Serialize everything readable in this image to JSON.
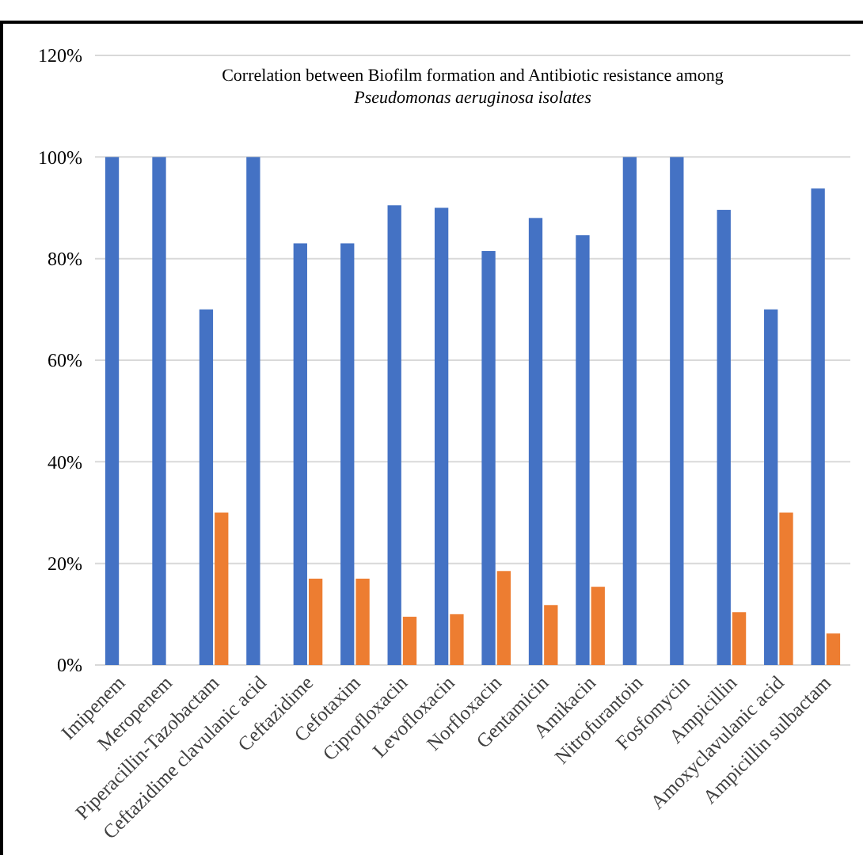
{
  "chart_data": {
    "type": "bar",
    "title": "Correlation between Biofilm formation and Antibiotic resistance among",
    "subtitle": "Pseudomonas aeruginosa isolates",
    "categories": [
      "Imipenem",
      "Meropenem",
      "Piperacillin-Tazobactam",
      "Ceftazidime clavulanic acid",
      "Ceftazidime",
      "Cefotaxim",
      "Ciprofloxacin",
      "Levofloxacin",
      "Norfloxacin",
      "Gentamicin",
      "Amikacin",
      "Nitrofurantoin",
      "Fosfomycin",
      "Ampicillin",
      "Amoxyclavulanic acid",
      "Ampicillin sulbactam"
    ],
    "series": [
      {
        "color": "#4472c4",
        "values": [
          100,
          100,
          70,
          100,
          83,
          83,
          90.5,
          90,
          81.5,
          88,
          84.6,
          100,
          100,
          89.6,
          70,
          93.8
        ]
      },
      {
        "color": "#ed7d31",
        "values": [
          0,
          0,
          30,
          0,
          17,
          17,
          9.5,
          10,
          18.5,
          11.8,
          15.4,
          0,
          0,
          10.4,
          30,
          6.2
        ]
      }
    ],
    "ylim": [
      0,
      120
    ],
    "yticks": [
      {
        "value": 0,
        "label": "0%"
      },
      {
        "value": 20,
        "label": "20%"
      },
      {
        "value": 40,
        "label": "40%"
      },
      {
        "value": 60,
        "label": "60%"
      },
      {
        "value": 80,
        "label": "80%"
      },
      {
        "value": 100,
        "label": "100%"
      },
      {
        "value": 120,
        "label": "120%"
      }
    ],
    "grid": "y"
  }
}
